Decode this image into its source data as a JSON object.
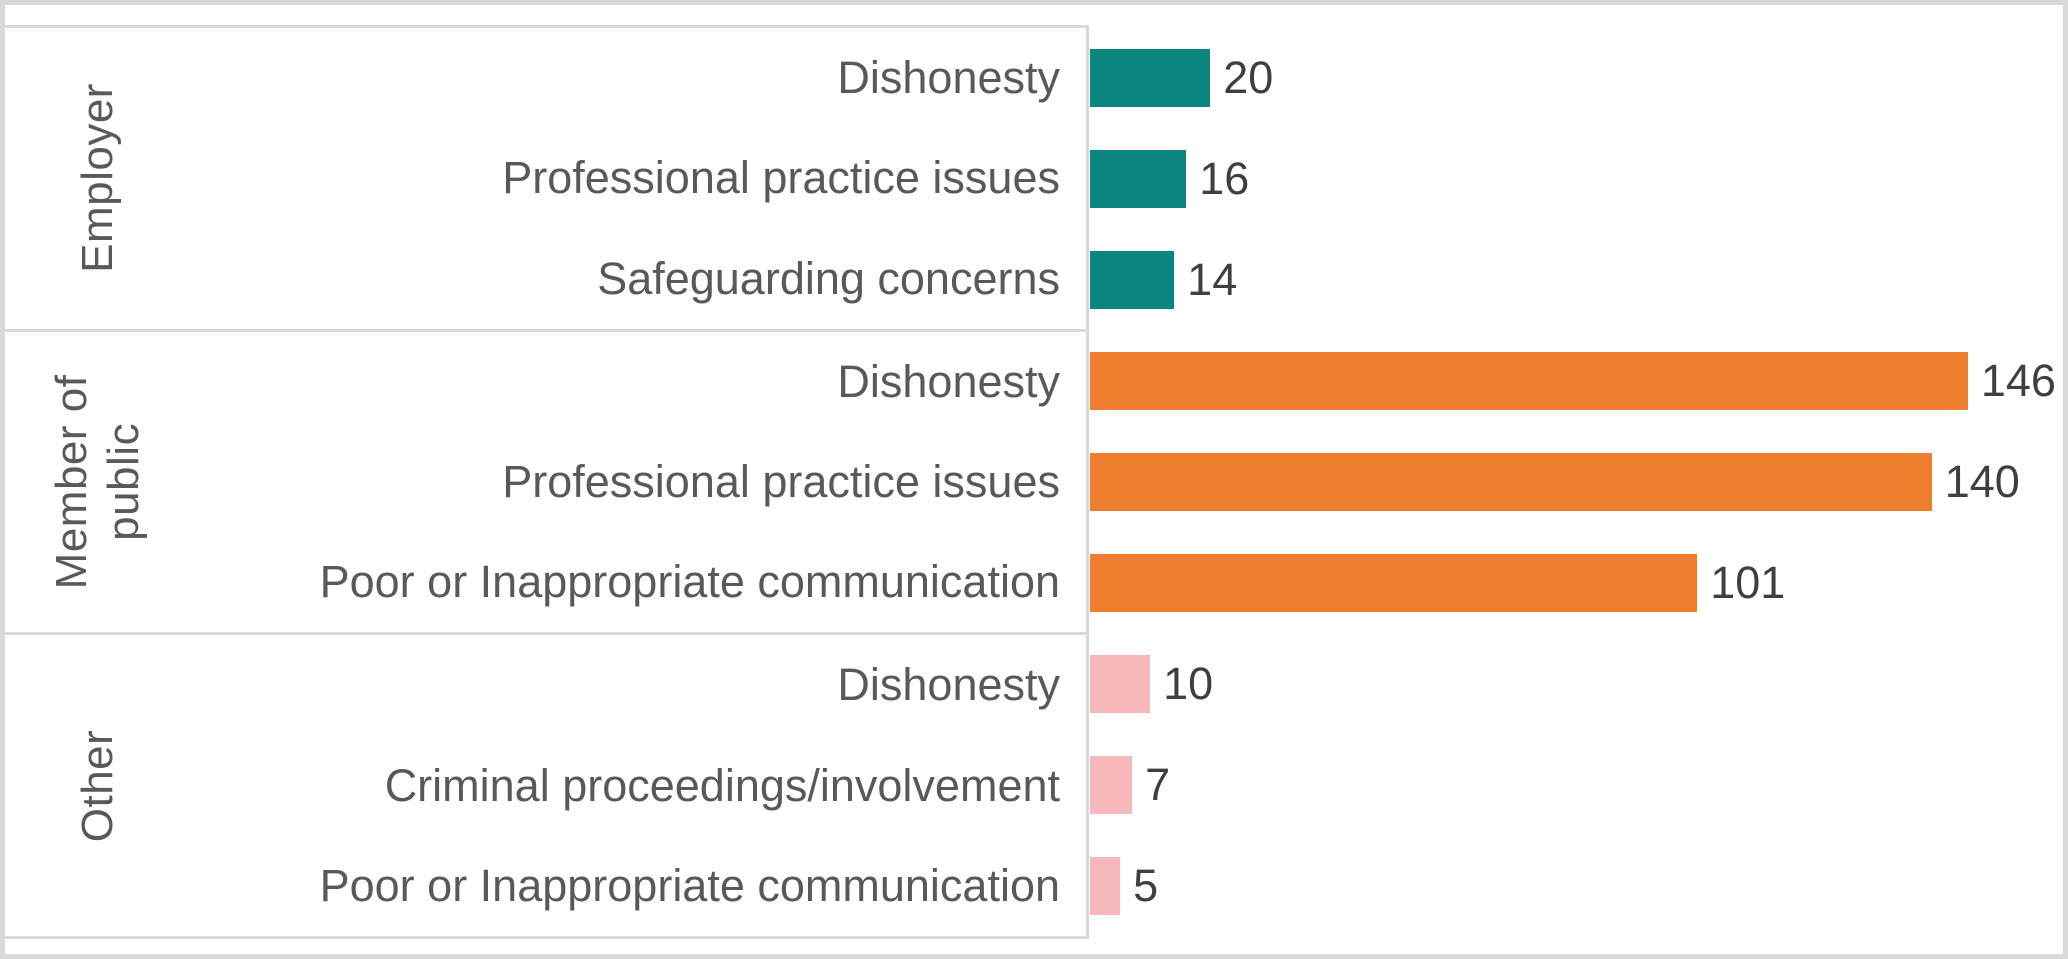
{
  "chart_data": {
    "type": "bar",
    "orientation": "horizontal",
    "title": "",
    "xlabel": "",
    "ylabel": "",
    "xlim": [
      0,
      160
    ],
    "value_axis_visible": false,
    "gridlines": false,
    "legend": "none",
    "data_labels": true,
    "frame_color": "#d9d9d9",
    "axis_line_color": "#d9d9d9",
    "label_color": "#595959",
    "value_label_color": "#3f3f3f",
    "groups": [
      {
        "name": "Employer",
        "color": "#0b8580",
        "items": [
          {
            "label": "Dishonesty",
            "value": 20
          },
          {
            "label": "Professional practice issues",
            "value": 16
          },
          {
            "label": "Safeguarding concerns",
            "value": 14
          }
        ]
      },
      {
        "name": "Member of public",
        "color": "#ef7d2e",
        "items": [
          {
            "label": "Dishonesty",
            "value": 146
          },
          {
            "label": "Professional practice issues",
            "value": 140
          },
          {
            "label": "Poor or Inappropriate communication",
            "value": 101
          }
        ]
      },
      {
        "name": "Other",
        "color": "#f6b8ba",
        "items": [
          {
            "label": "Dishonesty",
            "value": 10
          },
          {
            "label": "Criminal proceedings/involvement",
            "value": 7
          },
          {
            "label": "Poor or Inappropriate communication",
            "value": 5
          }
        ]
      }
    ]
  }
}
